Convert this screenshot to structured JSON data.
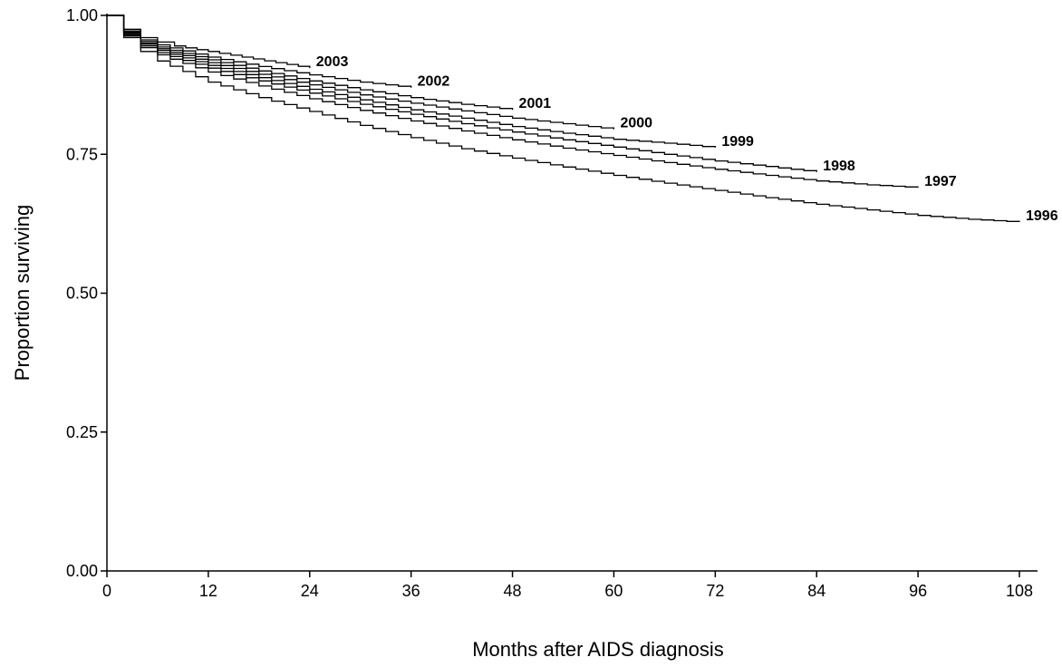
{
  "chart_data": {
    "type": "line",
    "title": "",
    "xlabel": "Months after AIDS diagnosis",
    "ylabel": "Proportion surviving",
    "xlim": [
      0,
      108
    ],
    "ylim": [
      0,
      1
    ],
    "x_ticks": [
      0,
      12,
      24,
      36,
      48,
      60,
      72,
      84,
      96,
      108
    ],
    "x_tick_labels": [
      "0",
      "12",
      "24",
      "36",
      "48",
      "60",
      "72",
      "84",
      "96",
      "108"
    ],
    "y_ticks": [
      0,
      0.25,
      0.5,
      0.75,
      1.0
    ],
    "y_tick_labels": [
      "0.00",
      "0.25",
      "0.50",
      "0.75",
      "1.00"
    ],
    "grid": false,
    "legend": "inline labels at end of each curve",
    "series": [
      {
        "name": "2003",
        "x": [
          0,
          1,
          2,
          4,
          6,
          8,
          12,
          16,
          20,
          24
        ],
        "y": [
          1.0,
          1.0,
          0.975,
          0.96,
          0.952,
          0.945,
          0.935,
          0.925,
          0.915,
          0.905
        ]
      },
      {
        "name": "2002",
        "x": [
          0,
          1,
          2,
          4,
          6,
          12,
          18,
          24,
          30,
          36
        ],
        "y": [
          1.0,
          1.0,
          0.972,
          0.956,
          0.947,
          0.925,
          0.908,
          0.893,
          0.88,
          0.87
        ]
      },
      {
        "name": "2001",
        "x": [
          0,
          1,
          2,
          4,
          6,
          12,
          18,
          24,
          30,
          36,
          42,
          48
        ],
        "y": [
          1.0,
          1.0,
          0.97,
          0.953,
          0.943,
          0.92,
          0.9,
          0.882,
          0.866,
          0.852,
          0.84,
          0.83
        ]
      },
      {
        "name": "2000",
        "x": [
          0,
          1,
          2,
          4,
          6,
          12,
          18,
          24,
          30,
          36,
          42,
          48,
          54,
          60
        ],
        "y": [
          1.0,
          1.0,
          0.968,
          0.95,
          0.94,
          0.915,
          0.894,
          0.875,
          0.857,
          0.842,
          0.828,
          0.815,
          0.805,
          0.795
        ]
      },
      {
        "name": "1999",
        "x": [
          0,
          1,
          2,
          4,
          6,
          12,
          18,
          24,
          30,
          36,
          42,
          48,
          54,
          60,
          66,
          72
        ],
        "y": [
          1.0,
          1.0,
          0.967,
          0.948,
          0.937,
          0.91,
          0.888,
          0.867,
          0.848,
          0.83,
          0.815,
          0.8,
          0.788,
          0.777,
          0.77,
          0.762
        ]
      },
      {
        "name": "1998",
        "x": [
          0,
          1,
          2,
          4,
          6,
          12,
          18,
          24,
          30,
          36,
          42,
          48,
          54,
          60,
          66,
          72,
          78,
          84
        ],
        "y": [
          1.0,
          1.0,
          0.965,
          0.945,
          0.933,
          0.905,
          0.882,
          0.86,
          0.84,
          0.822,
          0.805,
          0.79,
          0.776,
          0.763,
          0.75,
          0.738,
          0.728,
          0.718
        ]
      },
      {
        "name": "1997",
        "x": [
          0,
          1,
          2,
          4,
          6,
          12,
          18,
          24,
          30,
          36,
          42,
          48,
          54,
          60,
          66,
          72,
          78,
          84,
          90,
          96
        ],
        "y": [
          1.0,
          1.0,
          0.963,
          0.942,
          0.929,
          0.898,
          0.873,
          0.85,
          0.829,
          0.81,
          0.792,
          0.776,
          0.761,
          0.748,
          0.735,
          0.723,
          0.712,
          0.702,
          0.695,
          0.69
        ]
      },
      {
        "name": "1996",
        "x": [
          0,
          1,
          2,
          4,
          6,
          12,
          18,
          24,
          30,
          36,
          42,
          48,
          54,
          60,
          66,
          72,
          78,
          84,
          90,
          96,
          102,
          108
        ],
        "y": [
          1.0,
          1.0,
          0.96,
          0.935,
          0.918,
          0.88,
          0.852,
          0.827,
          0.802,
          0.78,
          0.76,
          0.743,
          0.727,
          0.712,
          0.698,
          0.685,
          0.672,
          0.66,
          0.65,
          0.64,
          0.633,
          0.628
        ]
      }
    ]
  }
}
